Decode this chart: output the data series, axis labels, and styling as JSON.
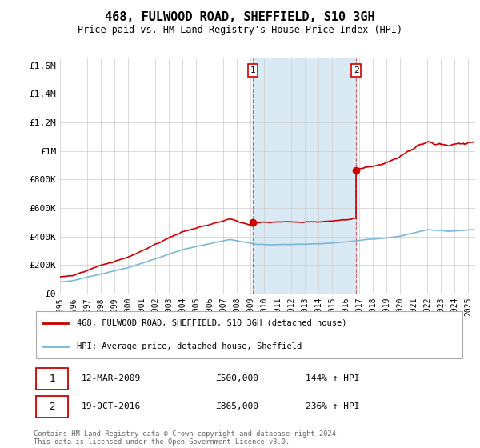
{
  "title": "468, FULWOOD ROAD, SHEFFIELD, S10 3GH",
  "subtitle": "Price paid vs. HM Land Registry's House Price Index (HPI)",
  "ylim": [
    0,
    1650000
  ],
  "yticks": [
    0,
    200000,
    400000,
    600000,
    800000,
    1000000,
    1200000,
    1400000,
    1600000
  ],
  "ytick_labels": [
    "£0",
    "£200K",
    "£400K",
    "£600K",
    "£800K",
    "£1M",
    "£1.2M",
    "£1.4M",
    "£1.6M"
  ],
  "xlim_start": 1995.0,
  "xlim_end": 2025.5,
  "xtick_years": [
    1995,
    1996,
    1997,
    1998,
    1999,
    2000,
    2001,
    2002,
    2003,
    2004,
    2005,
    2006,
    2007,
    2008,
    2009,
    2010,
    2011,
    2012,
    2013,
    2014,
    2015,
    2016,
    2017,
    2018,
    2019,
    2020,
    2021,
    2022,
    2023,
    2024,
    2025
  ],
  "sale1_month": 3,
  "sale1_year": 2009,
  "sale1_y": 500000,
  "sale1_label": "1",
  "sale1_date": "12-MAR-2009",
  "sale1_price": "£500,000",
  "sale1_hpi": "144% ↑ HPI",
  "sale2_month": 10,
  "sale2_year": 2016,
  "sale2_y": 865000,
  "sale2_label": "2",
  "sale2_date": "19-OCT-2016",
  "sale2_price": "£865,000",
  "sale2_hpi": "236% ↑ HPI",
  "hpi_color": "#7ab8d9",
  "red_color": "#cc0000",
  "shade_color": "#daeaf5",
  "legend1": "468, FULWOOD ROAD, SHEFFIELD, S10 3GH (detached house)",
  "legend2": "HPI: Average price, detached house, Sheffield",
  "footer": "Contains HM Land Registry data © Crown copyright and database right 2024.\nThis data is licensed under the Open Government Licence v3.0."
}
